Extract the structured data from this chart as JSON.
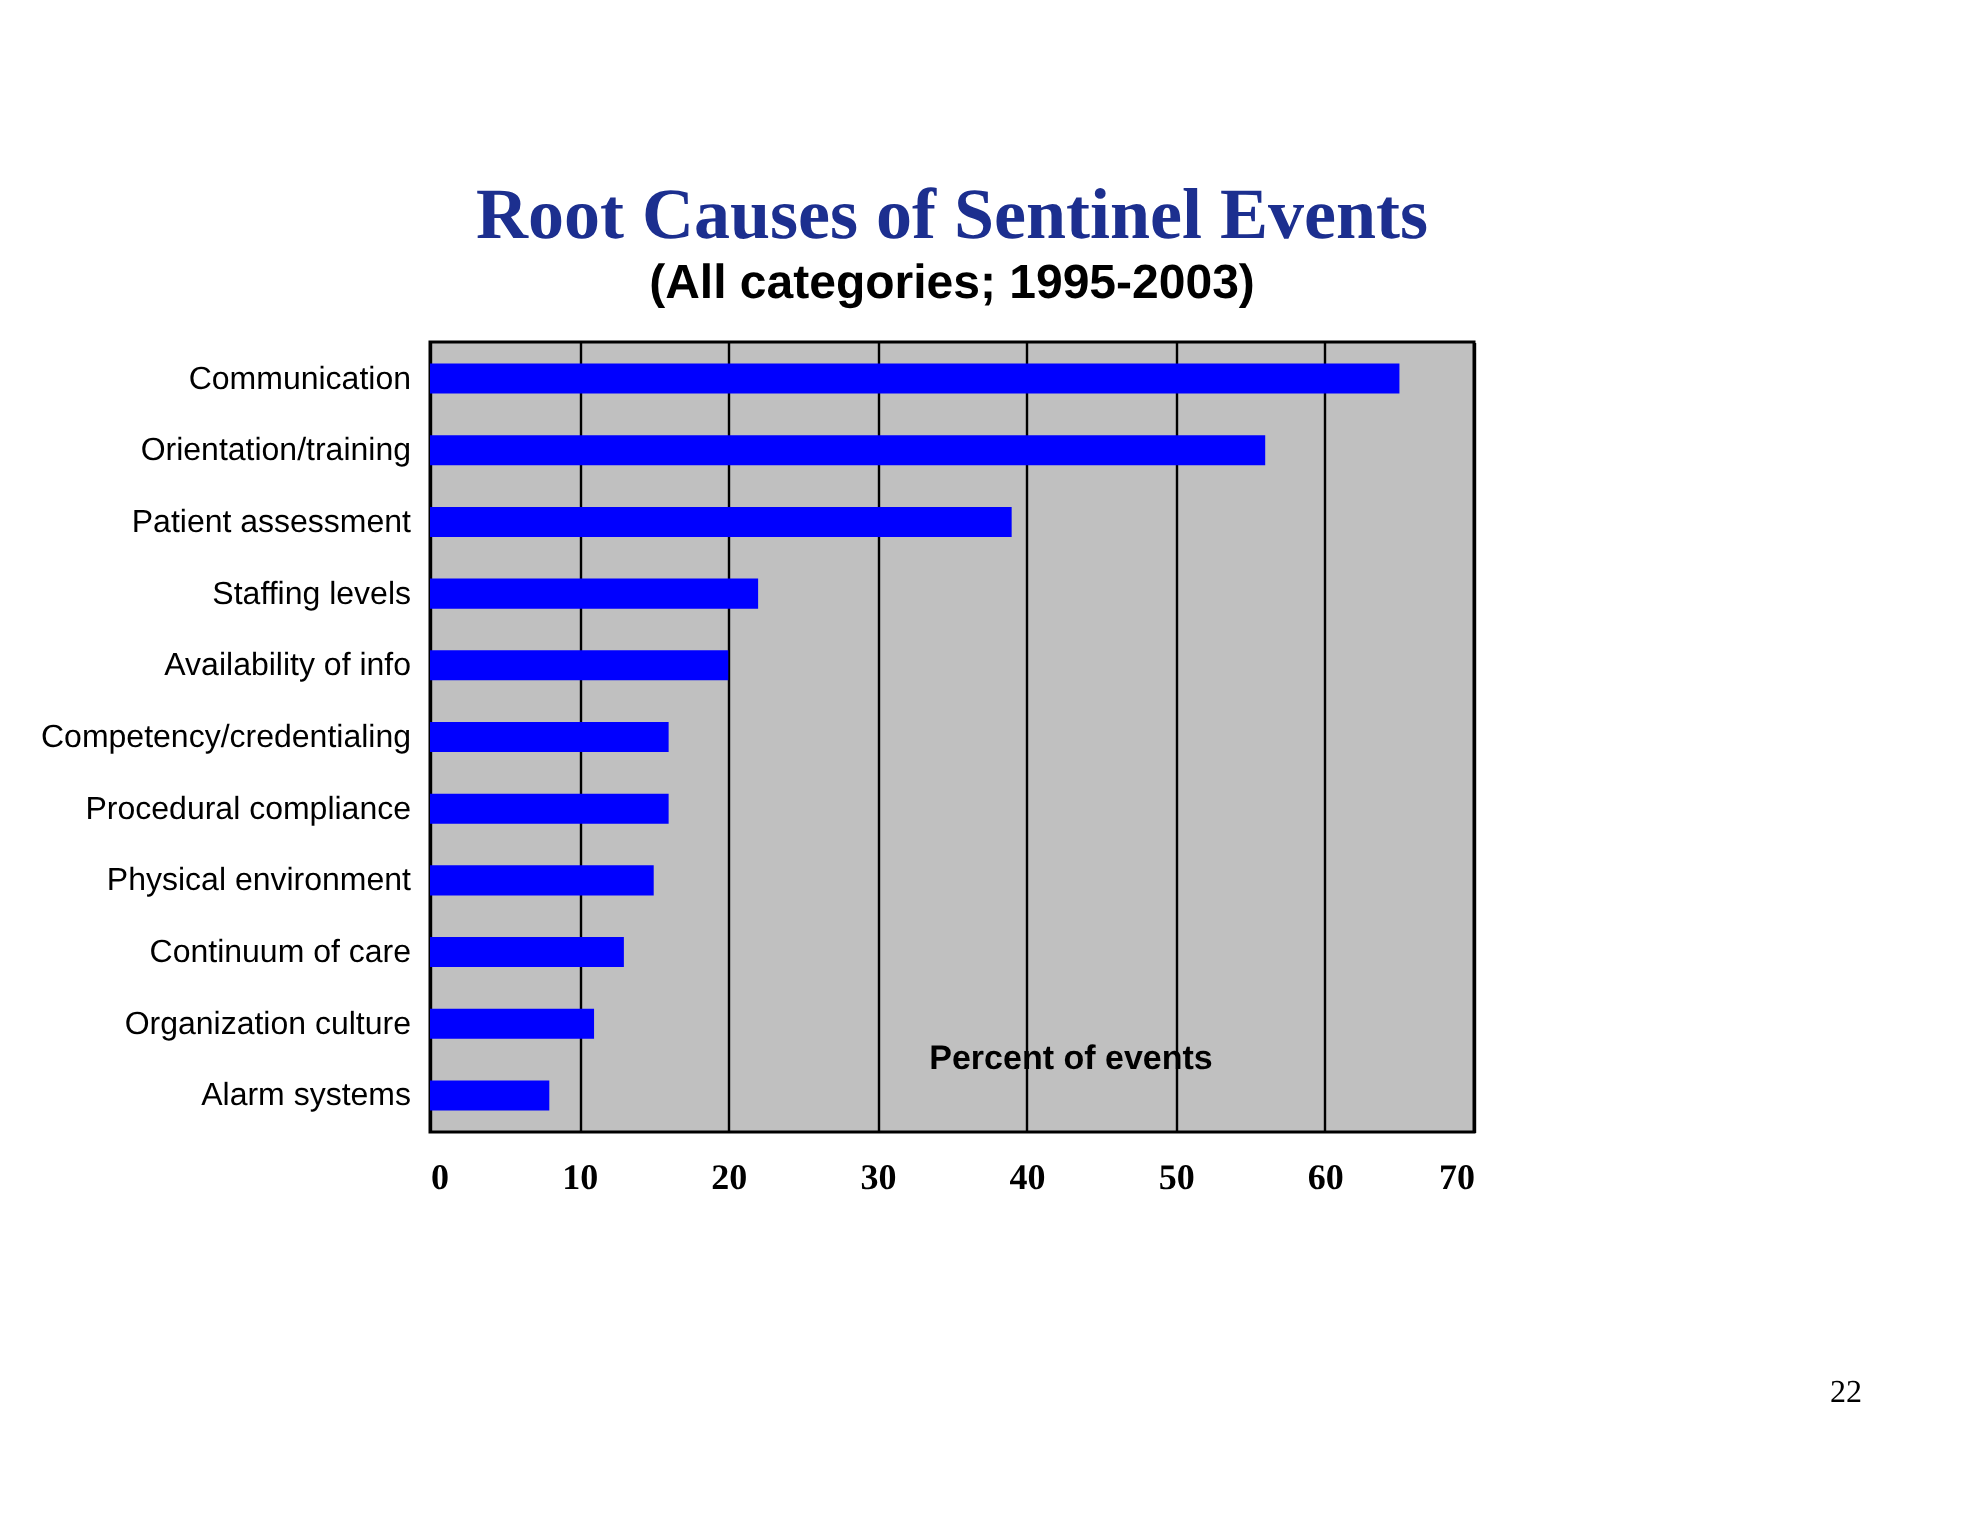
{
  "chart_data": {
    "type": "bar",
    "orientation": "horizontal",
    "title": "Root Causes of Sentinel Events",
    "subtitle": "(All categories; 1995-2003)",
    "xlabel": "Percent of events",
    "categories": [
      "Communication",
      "Orientation/training",
      "Patient assessment",
      "Staffing levels",
      "Availability of info",
      "Competency/credentialing",
      "Procedural compliance",
      "Physical environment",
      "Continuum of care",
      "Organization culture",
      "Alarm systems"
    ],
    "values": [
      65,
      56,
      39,
      22,
      20,
      16,
      16,
      15,
      13,
      11,
      8
    ],
    "color": "#0000ff",
    "xlim": [
      0,
      70
    ],
    "xticks": [
      0,
      10,
      20,
      30,
      40,
      50,
      60,
      70
    ],
    "grid": "x",
    "annotations": [
      "22"
    ]
  }
}
